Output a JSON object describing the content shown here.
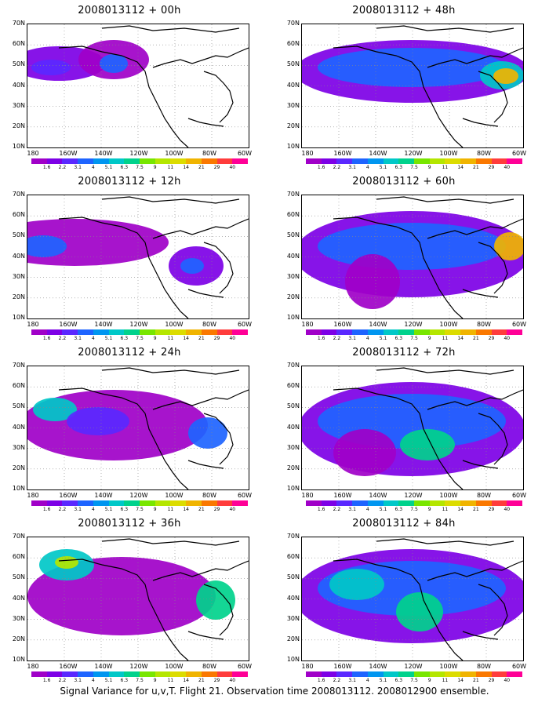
{
  "panels": [
    {
      "title": "2008013112 + 00h"
    },
    {
      "title": "2008013112 + 48h"
    },
    {
      "title": "2008013112 + 12h"
    },
    {
      "title": "2008013112 + 60h"
    },
    {
      "title": "2008013112 + 24h"
    },
    {
      "title": "2008013112 + 72h"
    },
    {
      "title": "2008013112 + 36h"
    },
    {
      "title": "2008013112 + 84h"
    }
  ],
  "axes": {
    "lat_labels": [
      "70N",
      "60N",
      "50N",
      "40N",
      "30N",
      "20N",
      "10N"
    ],
    "lon_labels": [
      "180",
      "160W",
      "140W",
      "120W",
      "100W",
      "80W",
      "60W"
    ]
  },
  "colorbar": {
    "labels": [
      "1.6",
      "2.2",
      "3.1",
      "4",
      "5.1",
      "6.3",
      "7.5",
      "9",
      "11",
      "14",
      "21",
      "29",
      "40"
    ],
    "colors": [
      "#a000c8",
      "#7d00e6",
      "#5a28ff",
      "#1e64ff",
      "#0096f0",
      "#00c8c8",
      "#00d28c",
      "#78e600",
      "#b4e600",
      "#dcdc00",
      "#f0b400",
      "#fa7800",
      "#ff3c3c",
      "#ff0096"
    ]
  },
  "caption": "Signal Variance for u,v,T. Flight 21. Observation time 2008013112. 2008012900 ensemble."
}
